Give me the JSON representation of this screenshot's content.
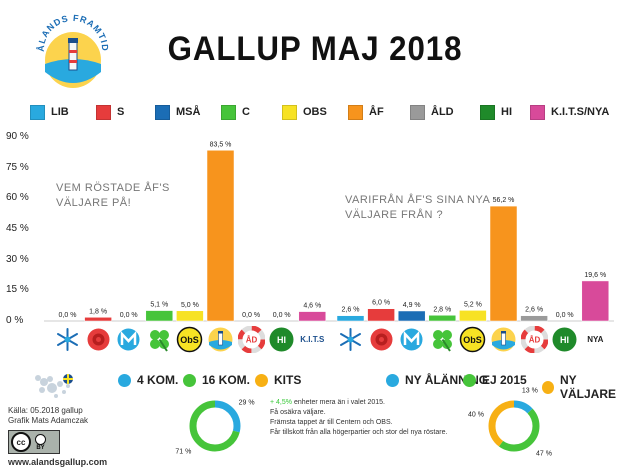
{
  "brand": {
    "logo_text": "ÅLANDS FRAMTID",
    "website": "www.alandsgallup.com"
  },
  "title": "GALLUP MAJ 2018",
  "colors": {
    "LIB": "#29a9df",
    "S": "#e63c3c",
    "MSÅ": "#1b6db5",
    "C": "#46c43a",
    "OBS": "#f7e224",
    "ÅF": "#f7941d",
    "ÅLD": "#9a9a9a",
    "HI": "#1f8a2a",
    "KITS_NYA": "#d84a9a"
  },
  "legend": [
    {
      "key": "LIB",
      "label": "LIB"
    },
    {
      "key": "S",
      "label": "S"
    },
    {
      "key": "MSÅ",
      "label": "MSÅ"
    },
    {
      "key": "C",
      "label": "C"
    },
    {
      "key": "OBS",
      "label": "OBS"
    },
    {
      "key": "ÅF",
      "label": "ÅF"
    },
    {
      "key": "ÅLD",
      "label": "ÅLD"
    },
    {
      "key": "HI",
      "label": "HI"
    },
    {
      "key": "KITS_NYA",
      "label": "K.I.T.S/NYA"
    }
  ],
  "annotations": {
    "left": [
      "VEM RÖSTADE ÅF'S",
      "VÄLJARE PÅ!"
    ],
    "right": [
      "VARIFRÅN ÅF'S SINA NYA",
      "VÄLJARE FRÅN ?"
    ]
  },
  "icon_labels": {
    "hi_left": "HI",
    "kits": "K.I.T.S",
    "hi_right": "HI",
    "nya": "NYA",
    "ald_badge": "ÅD"
  },
  "chart_data": {
    "type": "bar",
    "ylim": [
      0,
      90
    ],
    "yticks": [
      0,
      15,
      30,
      45,
      60,
      75,
      90
    ],
    "ytick_labels": [
      "0 %",
      "15 %",
      "30 %",
      "45 %",
      "60 %",
      "75 %",
      "90 %"
    ],
    "groups": [
      {
        "name": "VEM RÖSTADE ÅF'S VÄLJARE PÅ!",
        "categories": [
          "LIB",
          "S",
          "MSÅ",
          "C",
          "OBS",
          "ÅF",
          "ÅLD",
          "HI",
          "K.I.T.S"
        ],
        "values": [
          0.0,
          1.8,
          0.0,
          5.1,
          5.0,
          83.5,
          0.0,
          0.0,
          4.6
        ],
        "labels": [
          "0,0 %",
          "1,8 %",
          "0,0 %",
          "5,1 %",
          "5,0 %",
          "83,5 %",
          "0,0 %",
          "0,0 %",
          "4,6 %"
        ]
      },
      {
        "name": "VARIFRÅN ÅF'S SINA NYA VÄLJARE FRÅN ?",
        "categories": [
          "LIB",
          "S",
          "MSÅ",
          "C",
          "OBS",
          "ÅF",
          "ÅLD",
          "HI",
          "NYA"
        ],
        "values": [
          2.6,
          6.0,
          4.9,
          2.8,
          5.2,
          56.2,
          2.6,
          0.0,
          19.6
        ],
        "labels": [
          "2,6 %",
          "6,0 %",
          "4,9 %",
          "2,8 %",
          "5,2 %",
          "56,2 %",
          "2,6 %",
          "0,0 %",
          "19,6 %"
        ]
      }
    ],
    "donuts": [
      {
        "legend": [
          {
            "label": "4 KOM.",
            "color": "#29a9df"
          },
          {
            "label": "16 KOM.",
            "color": "#46c43a"
          },
          {
            "label": "KITS",
            "color": "#f7b014"
          }
        ],
        "slices": [
          {
            "value": 29,
            "label": "29 %",
            "color": "#29a9df"
          },
          {
            "value": 71,
            "label": "71 %",
            "color": "#46c43a"
          }
        ]
      },
      {
        "legend": [
          {
            "label": "NY ÅLÄNNING",
            "color": "#29a9df"
          },
          {
            "label": "EJ 2015",
            "color": "#46c43a"
          },
          {
            "label": "NY VÄLJARE",
            "color": "#f7b014"
          }
        ],
        "slices": [
          {
            "value": 13,
            "label": "13 %",
            "color": "#29a9df"
          },
          {
            "value": 47,
            "label": "47 %",
            "color": "#46c43a"
          },
          {
            "value": 40,
            "label": "40 %",
            "color": "#f7b014"
          }
        ]
      }
    ]
  },
  "notes": {
    "source": "Källa: 05.2018 gallup",
    "graphic": "Grafik Mats Adamczak",
    "cc": "cc",
    "by": "BY",
    "info_plus": "+ 4,5%",
    "info_line1_rest": " enheter mera än i valet 2015.",
    "info_line2": "Få osäkra väljare.",
    "info_line3": "Främsta tappet är till Centern och OBS.",
    "info_line4": "Får tillskott från alla högerpartier och stor del nya röstare."
  }
}
